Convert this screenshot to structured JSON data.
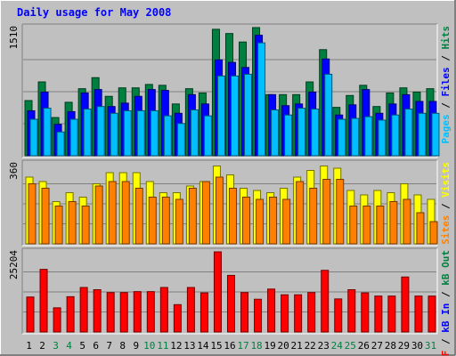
{
  "chart_data": {
    "type": "bar",
    "title": "Daily usage for May 2008",
    "categories": [
      "1",
      "2",
      "3",
      "4",
      "5",
      "6",
      "7",
      "8",
      "9",
      "10",
      "11",
      "12",
      "13",
      "14",
      "15",
      "16",
      "17",
      "18",
      "19",
      "20",
      "21",
      "22",
      "23",
      "24",
      "25",
      "26",
      "27",
      "28",
      "29",
      "30",
      "31"
    ],
    "weekend_days": [
      "3",
      "4",
      "10",
      "11",
      "17",
      "18",
      "24",
      "25",
      "31"
    ],
    "panels": [
      {
        "id": "hits_files_pages",
        "max_label": "1510",
        "ylim": [
          0,
          1510
        ],
        "side_label_parts": [
          {
            "text": "Pages",
            "color": "#00bfff"
          },
          {
            "text": " / ",
            "color": "#000000"
          },
          {
            "text": "Files",
            "color": "#0000ff"
          },
          {
            "text": " / ",
            "color": "#000000"
          },
          {
            "text": "Hits",
            "color": "#008040"
          }
        ],
        "series": [
          {
            "name": "Hits",
            "color": "#008040",
            "values": [
              650,
              870,
              450,
              630,
              790,
              920,
              700,
              800,
              800,
              840,
              830,
              610,
              790,
              740,
              1490,
              1440,
              1340,
              1510,
              720,
              720,
              720,
              870,
              1250,
              570,
              710,
              830,
              580,
              740,
              800,
              750,
              790
            ]
          },
          {
            "name": "Files",
            "color": "#0000ff",
            "values": [
              530,
              750,
              370,
              520,
              740,
              780,
              580,
              620,
              700,
              780,
              770,
              500,
              720,
              610,
              1130,
              1100,
              1040,
              1420,
              720,
              590,
              610,
              750,
              1140,
              480,
              600,
              780,
              500,
              610,
              720,
              640,
              640
            ]
          },
          {
            "name": "Pages",
            "color": "#00bfff",
            "values": [
              430,
              560,
              280,
              430,
              550,
              580,
              500,
              530,
              530,
              530,
              470,
              380,
              540,
              470,
              940,
              940,
              960,
              1330,
              540,
              480,
              560,
              550,
              960,
              430,
              440,
              460,
              420,
              480,
              550,
              500,
              500
            ]
          }
        ]
      },
      {
        "id": "visits_sites",
        "max_label": "360",
        "ylim": [
          0,
          360
        ],
        "side_label_parts": [
          {
            "text": "Sites",
            "color": "#ff8000"
          },
          {
            "text": " / ",
            "color": "#000000"
          },
          {
            "text": "Visits",
            "color": "#ffff00"
          }
        ],
        "series": [
          {
            "name": "Visits",
            "color": "#ffff00",
            "values": [
              300,
              280,
              190,
              230,
              210,
              270,
              320,
              320,
              320,
              280,
              230,
              230,
              260,
              280,
              350,
              310,
              250,
              240,
              230,
              250,
              300,
              330,
              350,
              340,
              240,
              220,
              240,
              230,
              270,
              220,
              200
            ]
          },
          {
            "name": "Sites",
            "color": "#ff8000",
            "values": [
              270,
              250,
              170,
              190,
              170,
              260,
              280,
              280,
              250,
              210,
              210,
              200,
              250,
              280,
              300,
              250,
              210,
              200,
              210,
              200,
              280,
              250,
              290,
              290,
              170,
              170,
              170,
              190,
              200,
              140,
              100
            ]
          }
        ]
      },
      {
        "id": "kbytes",
        "max_label": "25204",
        "ylim": [
          0,
          25204
        ],
        "side_label_parts": [
          {
            "text": "kB F",
            "color": "#ff0000"
          },
          {
            "text": " / ",
            "color": "#000000"
          },
          {
            "text": "kB In",
            "color": "#0000ff"
          },
          {
            "text": " / ",
            "color": "#000000"
          },
          {
            "text": "kB Out",
            "color": "#008040"
          }
        ],
        "series": [
          {
            "name": "kB F",
            "color": "#ff0000",
            "values": [
              11000,
              19700,
              7600,
              11100,
              14000,
              13300,
              12400,
              12400,
              12700,
              12700,
              14000,
              8600,
              14000,
              12300,
              25204,
              17800,
              12400,
              10300,
              13500,
              11700,
              11700,
              12400,
              19400,
              10400,
              13300,
              12300,
              11300,
              11300,
              17300,
              11300,
              11300
            ]
          }
        ]
      }
    ]
  }
}
